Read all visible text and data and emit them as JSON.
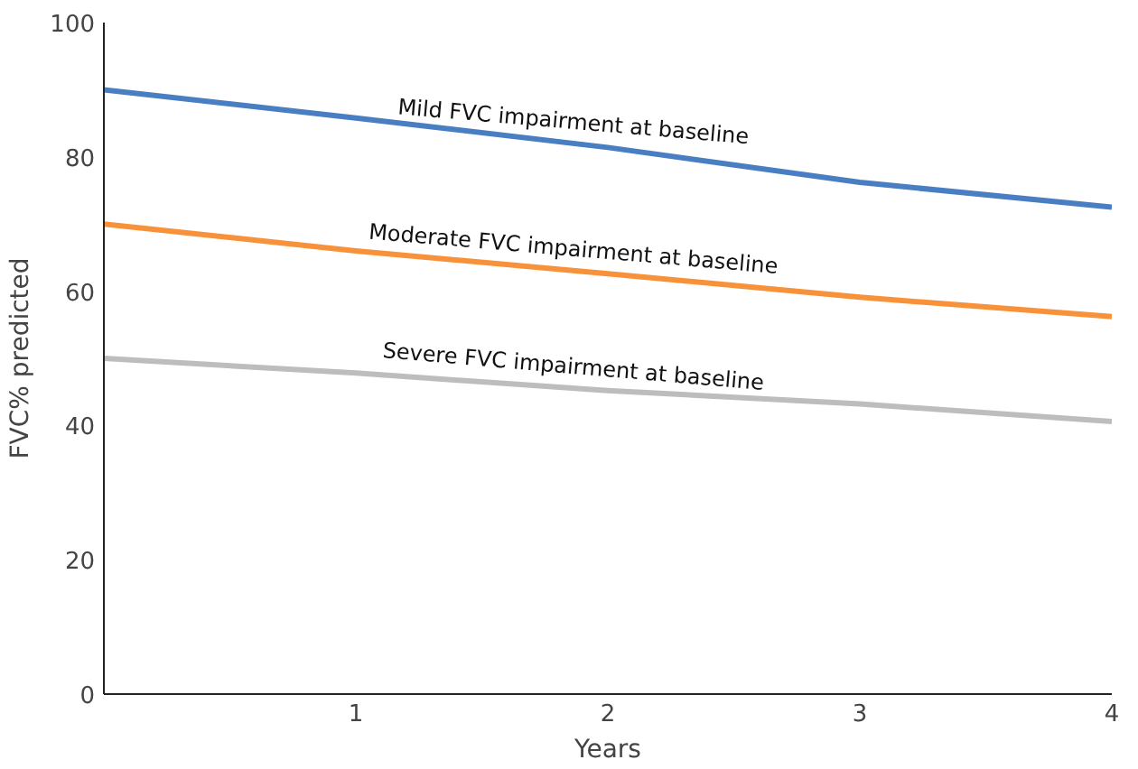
{
  "chart_data": {
    "type": "line",
    "xlabel": "Years",
    "ylabel": "FVC% predicted",
    "x": [
      0,
      1,
      2,
      3,
      4
    ],
    "series": [
      {
        "name": "Mild FVC impairment at baseline",
        "color": "#4a7ec2",
        "values": [
          90,
          85.8,
          81.4,
          76.2,
          72.5
        ]
      },
      {
        "name": "Moderate FVC impairment at baseline",
        "color": "#f7923a",
        "values": [
          70,
          66,
          62.6,
          59.1,
          56.2
        ]
      },
      {
        "name": "Severe FVC impairment at baseline",
        "color": "#bdbdbd",
        "values": [
          50,
          47.8,
          45.2,
          43.2,
          40.6
        ]
      }
    ],
    "xlim": [
      0,
      4
    ],
    "xticks": [
      1,
      2,
      3,
      4
    ],
    "ylim": [
      0,
      100
    ],
    "yticks": [
      0,
      20,
      40,
      60,
      80,
      100
    ],
    "grid": false,
    "legend": false,
    "marker": "none",
    "line_style": "solid"
  }
}
